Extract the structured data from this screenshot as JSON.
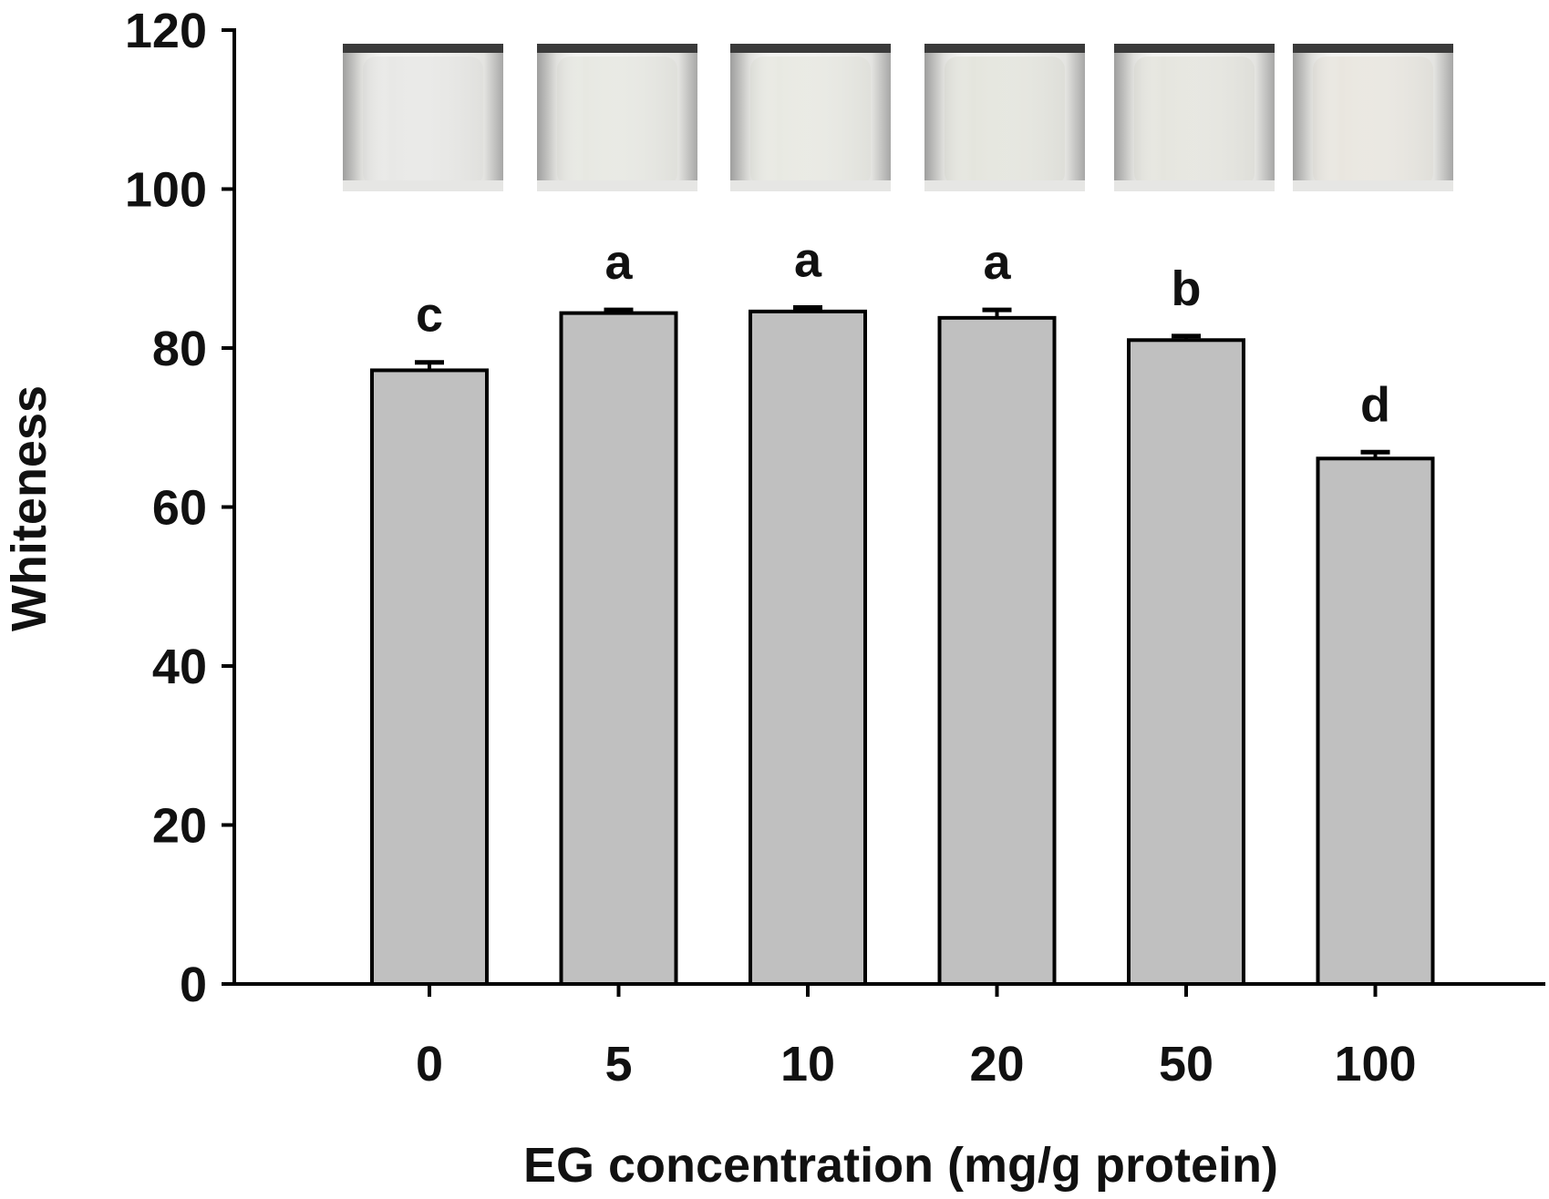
{
  "chart_data": {
    "type": "bar",
    "title": "",
    "xlabel": "EG concentration (mg/g protein)",
    "ylabel": "Whiteness",
    "categories": [
      "0",
      "5",
      "10",
      "20",
      "50",
      "100"
    ],
    "series": [
      {
        "values": [
          77.2,
          84.4,
          84.6,
          83.8,
          81.0,
          66.1
        ],
        "errors": [
          1.0,
          0.4,
          0.5,
          1.0,
          0.5,
          0.8
        ],
        "significance_letters": [
          "c",
          "a",
          "a",
          "a",
          "b",
          "d"
        ]
      }
    ],
    "ylim": [
      0,
      120
    ],
    "yticks": [
      0,
      20,
      40,
      60,
      80,
      100,
      120
    ],
    "grid": false,
    "legend": "none",
    "bar_color": "#c0c0c0",
    "bar_edge_color": "#000000",
    "sample_photos": {
      "count": 6,
      "description_colors": [
        "#e8e8e6",
        "#e7e8e2",
        "#e8e9e2",
        "#e4e5dd",
        "#e5e5de",
        "#e9e6df"
      ]
    }
  }
}
